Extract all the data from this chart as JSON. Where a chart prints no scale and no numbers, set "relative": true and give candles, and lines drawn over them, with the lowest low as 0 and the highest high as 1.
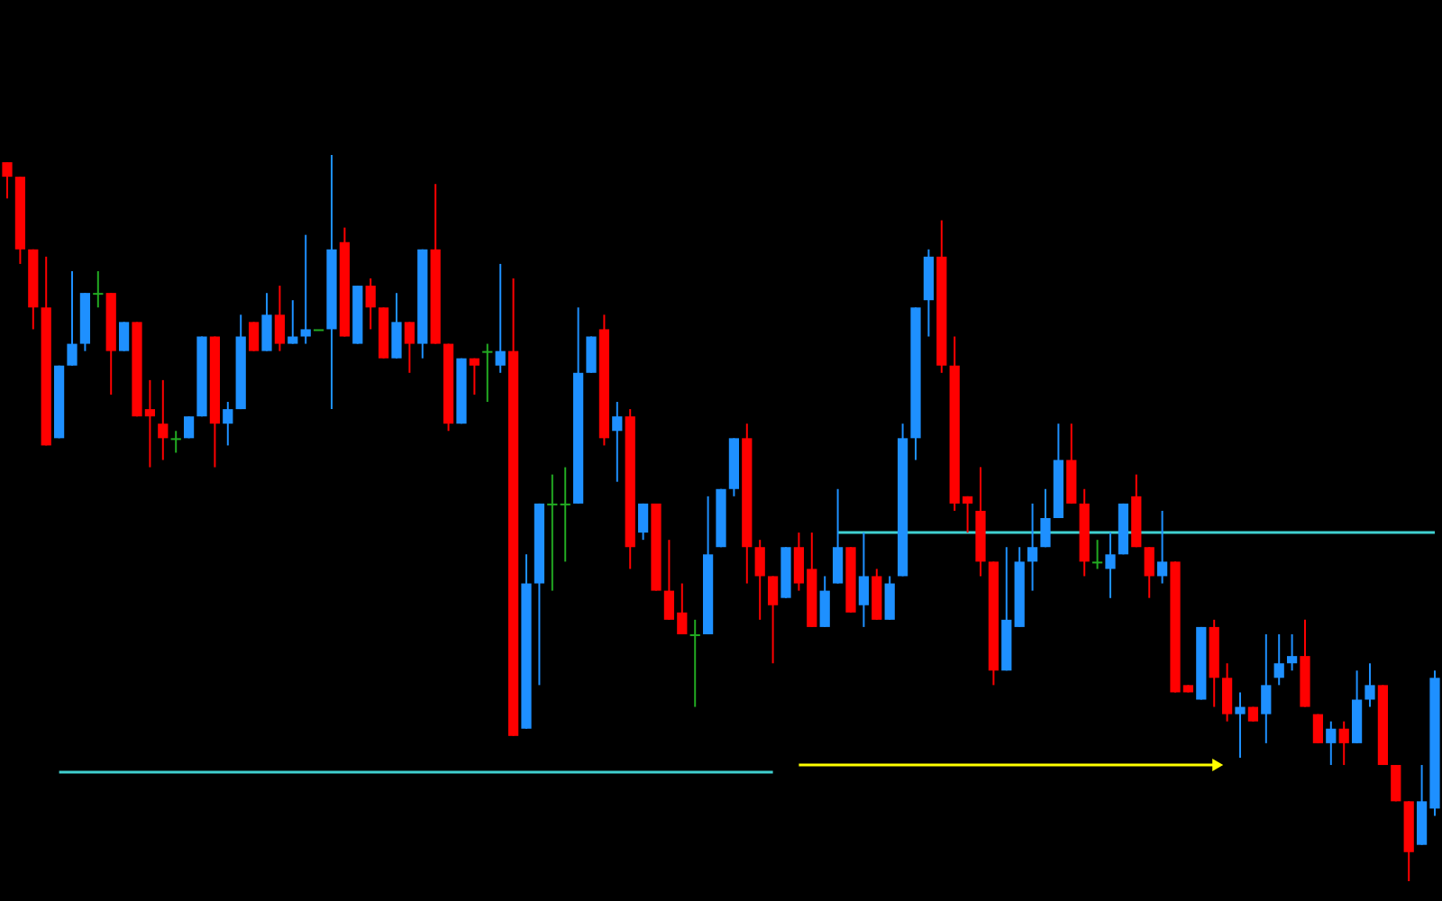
{
  "chart_data": {
    "type": "candlestick",
    "relative": true,
    "categories": [
      null,
      null,
      null,
      null,
      null,
      null,
      null,
      null,
      null,
      null,
      null,
      null,
      null,
      null,
      null,
      null,
      null,
      null,
      null,
      null,
      null,
      null,
      null,
      null,
      null,
      null,
      null,
      null,
      null,
      null,
      null,
      null,
      null,
      null,
      null,
      null,
      null,
      null,
      null,
      null,
      null,
      null,
      null,
      null,
      null,
      null,
      null,
      null,
      null,
      null,
      null,
      null,
      null,
      null,
      null,
      null,
      null,
      null,
      null,
      null,
      null,
      null,
      null,
      null,
      null,
      null,
      null,
      null,
      null,
      null,
      null,
      null,
      null,
      null,
      null,
      null,
      null,
      null,
      null,
      null,
      null,
      null,
      null,
      null,
      null,
      null,
      null,
      null,
      null,
      null,
      null,
      null,
      null,
      null,
      null,
      null,
      null,
      null,
      null,
      null,
      null,
      null,
      null,
      null,
      null,
      null,
      null,
      null,
      null,
      null,
      null
    ],
    "ohlc": [
      [
        0.99,
        0.99,
        0.94,
        0.97
      ],
      [
        0.97,
        0.97,
        0.85,
        0.87
      ],
      [
        0.87,
        0.87,
        0.76,
        0.79
      ],
      [
        0.79,
        0.86,
        0.6,
        0.6
      ],
      [
        0.61,
        0.71,
        0.61,
        0.71
      ],
      [
        0.71,
        0.84,
        0.71,
        0.74
      ],
      [
        0.74,
        0.81,
        0.73,
        0.81
      ],
      [
        0.81,
        0.84,
        0.79,
        0.81
      ],
      [
        0.81,
        0.81,
        0.67,
        0.73
      ],
      [
        0.73,
        0.77,
        0.73,
        0.77
      ],
      [
        0.77,
        0.77,
        0.64,
        0.64
      ],
      [
        0.65,
        0.69,
        0.57,
        0.64
      ],
      [
        0.63,
        0.69,
        0.58,
        0.61
      ],
      [
        0.61,
        0.62,
        0.59,
        0.61
      ],
      [
        0.61,
        0.64,
        0.61,
        0.64
      ],
      [
        0.64,
        0.75,
        0.64,
        0.75
      ],
      [
        0.75,
        0.75,
        0.57,
        0.63
      ],
      [
        0.63,
        0.66,
        0.6,
        0.65
      ],
      [
        0.65,
        0.78,
        0.65,
        0.75
      ],
      [
        0.77,
        0.77,
        0.73,
        0.73
      ],
      [
        0.73,
        0.81,
        0.73,
        0.78
      ],
      [
        0.78,
        0.82,
        0.73,
        0.74
      ],
      [
        0.74,
        0.8,
        0.74,
        0.75
      ],
      [
        0.75,
        0.89,
        0.74,
        0.76
      ],
      [
        0.76,
        0.76,
        0.76,
        0.76
      ],
      [
        0.76,
        1,
        0.65,
        0.87
      ],
      [
        0.88,
        0.9,
        0.75,
        0.75
      ],
      [
        0.74,
        0.82,
        0.74,
        0.82
      ],
      [
        0.82,
        0.83,
        0.76,
        0.79
      ],
      [
        0.79,
        0.79,
        0.72,
        0.72
      ],
      [
        0.72,
        0.81,
        0.72,
        0.77
      ],
      [
        0.77,
        0.77,
        0.7,
        0.74
      ],
      [
        0.74,
        0.87,
        0.72,
        0.87
      ],
      [
        0.87,
        0.96,
        0.74,
        0.74
      ],
      [
        0.74,
        0.74,
        0.62,
        0.63
      ],
      [
        0.63,
        0.72,
        0.63,
        0.72
      ],
      [
        0.72,
        0.72,
        0.67,
        0.71
      ],
      [
        0.73,
        0.74,
        0.66,
        0.73
      ],
      [
        0.71,
        0.85,
        0.7,
        0.73
      ],
      [
        0.73,
        0.83,
        0.2,
        0.2
      ],
      [
        0.21,
        0.45,
        0.21,
        0.41
      ],
      [
        0.41,
        0.52,
        0.27,
        0.52
      ],
      [
        0.52,
        0.56,
        0.4,
        0.52
      ],
      [
        0.52,
        0.57,
        0.44,
        0.52
      ],
      [
        0.52,
        0.79,
        0.52,
        0.7
      ],
      [
        0.7,
        0.75,
        0.7,
        0.75
      ],
      [
        0.76,
        0.78,
        0.6,
        0.61
      ],
      [
        0.62,
        0.66,
        0.55,
        0.64
      ],
      [
        0.64,
        0.65,
        0.43,
        0.46
      ],
      [
        0.48,
        0.52,
        0.47,
        0.52
      ],
      [
        0.52,
        0.52,
        0.4,
        0.4
      ],
      [
        0.4,
        0.47,
        0.36,
        0.36
      ],
      [
        0.37,
        0.41,
        0.34,
        0.34
      ],
      [
        0.34,
        0.36,
        0.24,
        0.34
      ],
      [
        0.34,
        0.53,
        0.34,
        0.45
      ],
      [
        0.46,
        0.54,
        0.46,
        0.54
      ],
      [
        0.54,
        0.61,
        0.53,
        0.61
      ],
      [
        0.61,
        0.63,
        0.41,
        0.46
      ],
      [
        0.46,
        0.47,
        0.36,
        0.42
      ],
      [
        0.42,
        0.42,
        0.3,
        0.38
      ],
      [
        0.39,
        0.46,
        0.39,
        0.46
      ],
      [
        0.46,
        0.48,
        0.4,
        0.41
      ],
      [
        0.43,
        0.48,
        0.35,
        0.35
      ],
      [
        0.35,
        0.42,
        0.35,
        0.4
      ],
      [
        0.41,
        0.54,
        0.41,
        0.46
      ],
      [
        0.46,
        0.46,
        0.37,
        0.37
      ],
      [
        0.38,
        0.48,
        0.35,
        0.42
      ],
      [
        0.42,
        0.43,
        0.36,
        0.36
      ],
      [
        0.36,
        0.42,
        0.36,
        0.41
      ],
      [
        0.42,
        0.63,
        0.42,
        0.61
      ],
      [
        0.61,
        0.79,
        0.58,
        0.79
      ],
      [
        0.8,
        0.87,
        0.75,
        0.86
      ],
      [
        0.86,
        0.91,
        0.7,
        0.71
      ],
      [
        0.71,
        0.75,
        0.51,
        0.52
      ],
      [
        0.53,
        0.53,
        0.48,
        0.52
      ],
      [
        0.51,
        0.57,
        0.42,
        0.44
      ],
      [
        0.44,
        0.44,
        0.27,
        0.29
      ],
      [
        0.29,
        0.46,
        0.29,
        0.36
      ],
      [
        0.35,
        0.46,
        0.35,
        0.44
      ],
      [
        0.44,
        0.52,
        0.4,
        0.46
      ],
      [
        0.46,
        0.54,
        0.46,
        0.5
      ],
      [
        0.5,
        0.63,
        0.5,
        0.58
      ],
      [
        0.58,
        0.63,
        0.52,
        0.52
      ],
      [
        0.52,
        0.54,
        0.42,
        0.44
      ],
      [
        0.44,
        0.47,
        0.43,
        0.44
      ],
      [
        0.43,
        0.48,
        0.39,
        0.45
      ],
      [
        0.45,
        0.52,
        0.45,
        0.52
      ],
      [
        0.53,
        0.56,
        0.46,
        0.46
      ],
      [
        0.46,
        0.46,
        0.39,
        0.42
      ],
      [
        0.42,
        0.51,
        0.41,
        0.44
      ],
      [
        0.44,
        0.44,
        0.26,
        0.26
      ],
      [
        0.27,
        0.27,
        0.26,
        0.26
      ],
      [
        0.25,
        0.35,
        0.25,
        0.35
      ],
      [
        0.35,
        0.36,
        0.24,
        0.28
      ],
      [
        0.28,
        0.3,
        0.22,
        0.23
      ],
      [
        0.23,
        0.26,
        0.17,
        0.24
      ],
      [
        0.24,
        0.24,
        0.22,
        0.22
      ],
      [
        0.23,
        0.34,
        0.19,
        0.27
      ],
      [
        0.28,
        0.34,
        0.27,
        0.3
      ],
      [
        0.3,
        0.34,
        0.29,
        0.31
      ],
      [
        0.31,
        0.36,
        0.24,
        0.24
      ],
      [
        0.23,
        0.23,
        0.19,
        0.19
      ],
      [
        0.19,
        0.22,
        0.16,
        0.21
      ],
      [
        0.21,
        0.22,
        0.16,
        0.19
      ],
      [
        0.19,
        0.29,
        0.19,
        0.25
      ],
      [
        0.25,
        0.3,
        0.24,
        0.27
      ],
      [
        0.27,
        0.27,
        0.16,
        0.16
      ],
      [
        0.16,
        0.16,
        0.11,
        0.11
      ],
      [
        0.11,
        0.11,
        0,
        0.04
      ],
      [
        0.05,
        0.16,
        0.05,
        0.11
      ],
      [
        0.1,
        0.29,
        0.09,
        0.28
      ]
    ],
    "colors": [
      "#ff0000",
      "#ff0000",
      "#ff0000",
      "#ff0000",
      "#1e90ff",
      "#1e90ff",
      "#1e90ff",
      "#22aa22",
      "#ff0000",
      "#1e90ff",
      "#ff0000",
      "#ff0000",
      "#ff0000",
      "#22aa22",
      "#1e90ff",
      "#1e90ff",
      "#ff0000",
      "#1e90ff",
      "#1e90ff",
      "#ff0000",
      "#1e90ff",
      "#ff0000",
      "#1e90ff",
      "#1e90ff",
      "#22aa22",
      "#1e90ff",
      "#ff0000",
      "#1e90ff",
      "#ff0000",
      "#ff0000",
      "#1e90ff",
      "#ff0000",
      "#1e90ff",
      "#ff0000",
      "#ff0000",
      "#1e90ff",
      "#ff0000",
      "#22aa22",
      "#1e90ff",
      "#ff0000",
      "#1e90ff",
      "#1e90ff",
      "#22aa22",
      "#22aa22",
      "#1e90ff",
      "#1e90ff",
      "#ff0000",
      "#1e90ff",
      "#ff0000",
      "#1e90ff",
      "#ff0000",
      "#ff0000",
      "#ff0000",
      "#22aa22",
      "#1e90ff",
      "#1e90ff",
      "#1e90ff",
      "#ff0000",
      "#ff0000",
      "#ff0000",
      "#1e90ff",
      "#ff0000",
      "#ff0000",
      "#1e90ff",
      "#1e90ff",
      "#ff0000",
      "#1e90ff",
      "#ff0000",
      "#1e90ff",
      "#1e90ff",
      "#1e90ff",
      "#1e90ff",
      "#ff0000",
      "#ff0000",
      "#ff0000",
      "#ff0000",
      "#ff0000",
      "#1e90ff",
      "#1e90ff",
      "#1e90ff",
      "#1e90ff",
      "#1e90ff",
      "#ff0000",
      "#ff0000",
      "#22aa22",
      "#1e90ff",
      "#1e90ff",
      "#ff0000",
      "#ff0000",
      "#1e90ff",
      "#ff0000",
      "#ff0000",
      "#1e90ff",
      "#ff0000",
      "#ff0000",
      "#1e90ff",
      "#ff0000",
      "#1e90ff",
      "#1e90ff",
      "#1e90ff",
      "#ff0000",
      "#ff0000",
      "#1e90ff",
      "#ff0000",
      "#1e90ff",
      "#1e90ff",
      "#ff0000",
      "#ff0000",
      "#ff0000",
      "#1e90ff",
      "#1e90ff"
    ],
    "series": [
      {
        "type": "line",
        "color": "#40d0d0",
        "values": [
          null,
          null,
          null,
          null,
          0.15,
          0.15,
          0.15,
          0.15,
          0.15,
          0.15,
          0.15,
          0.15,
          0.15,
          0.15,
          0.15,
          0.15,
          0.15,
          0.15,
          0.15,
          0.15,
          0.15,
          0.15,
          0.15,
          0.15,
          0.15,
          0.15,
          0.15,
          0.15,
          0.15,
          0.15,
          0.15,
          0.15,
          0.15,
          0.15,
          0.15,
          0.15,
          0.15,
          0.15,
          0.15,
          0.15,
          0.15,
          0.15,
          0.15,
          0.15,
          0.15,
          0.15,
          0.15,
          0.15,
          0.15,
          0.15,
          0.15,
          0.15,
          0.15,
          0.15,
          0.15,
          0.15,
          0.15,
          0.15,
          0.15,
          0.15,
          null,
          null,
          null,
          null,
          null,
          null,
          null,
          null,
          null,
          null,
          null,
          null,
          null,
          null,
          null,
          null,
          null,
          null,
          null,
          null,
          null,
          null,
          null,
          null,
          null,
          null,
          null,
          null,
          null,
          null,
          null,
          null,
          null,
          null,
          null,
          null,
          null,
          null,
          null,
          null,
          null,
          null,
          null,
          null,
          null,
          null,
          null,
          null,
          null,
          null,
          null
        ]
      },
      {
        "type": "line",
        "color": "#40d0d0",
        "values": [
          null,
          null,
          null,
          null,
          null,
          null,
          null,
          null,
          null,
          null,
          null,
          null,
          null,
          null,
          null,
          null,
          null,
          null,
          null,
          null,
          null,
          null,
          null,
          null,
          null,
          null,
          null,
          null,
          null,
          null,
          null,
          null,
          null,
          null,
          null,
          null,
          null,
          null,
          null,
          null,
          null,
          null,
          null,
          null,
          null,
          null,
          null,
          null,
          null,
          null,
          null,
          null,
          null,
          null,
          null,
          null,
          null,
          null,
          null,
          null,
          null,
          null,
          null,
          null,
          0.48,
          0.48,
          0.48,
          0.48,
          0.48,
          0.48,
          0.48,
          0.48,
          0.48,
          0.48,
          0.48,
          0.48,
          0.48,
          0.48,
          0.48,
          0.48,
          0.48,
          0.48,
          0.48,
          0.48,
          0.48,
          0.48,
          0.48,
          0.48,
          0.48,
          0.48,
          0.48,
          0.48,
          0.48,
          0.48,
          0.48,
          0.48,
          0.48,
          0.48,
          0.48,
          0.48,
          0.48,
          0.48,
          0.48,
          0.48,
          0.48,
          0.48,
          0.48,
          0.48,
          0.48,
          0.48,
          0.48
        ]
      },
      {
        "type": "line",
        "color": "#ffff00",
        "values": [
          null,
          null,
          null,
          null,
          null,
          null,
          null,
          null,
          null,
          null,
          null,
          null,
          null,
          null,
          null,
          null,
          null,
          null,
          null,
          null,
          null,
          null,
          null,
          null,
          null,
          null,
          null,
          null,
          null,
          null,
          null,
          null,
          null,
          null,
          null,
          null,
          null,
          null,
          null,
          null,
          null,
          null,
          null,
          null,
          null,
          null,
          null,
          null,
          null,
          null,
          null,
          null,
          null,
          null,
          null,
          null,
          null,
          null,
          null,
          null,
          null,
          0.16,
          0.16,
          0.16,
          0.16,
          0.16,
          0.16,
          0.16,
          0.16,
          0.16,
          0.16,
          0.16,
          0.16,
          0.16,
          0.16,
          0.16,
          0.16,
          0.16,
          0.16,
          0.16,
          0.16,
          0.16,
          0.16,
          0.16,
          0.16,
          0.16,
          0.16,
          0.16,
          0.16,
          0.16,
          0.16,
          0.16,
          0.16,
          0.16,
          null,
          null,
          null,
          null,
          null,
          null,
          null,
          null,
          null,
          null,
          null,
          null,
          null,
          null,
          null,
          null,
          null
        ]
      }
    ]
  }
}
